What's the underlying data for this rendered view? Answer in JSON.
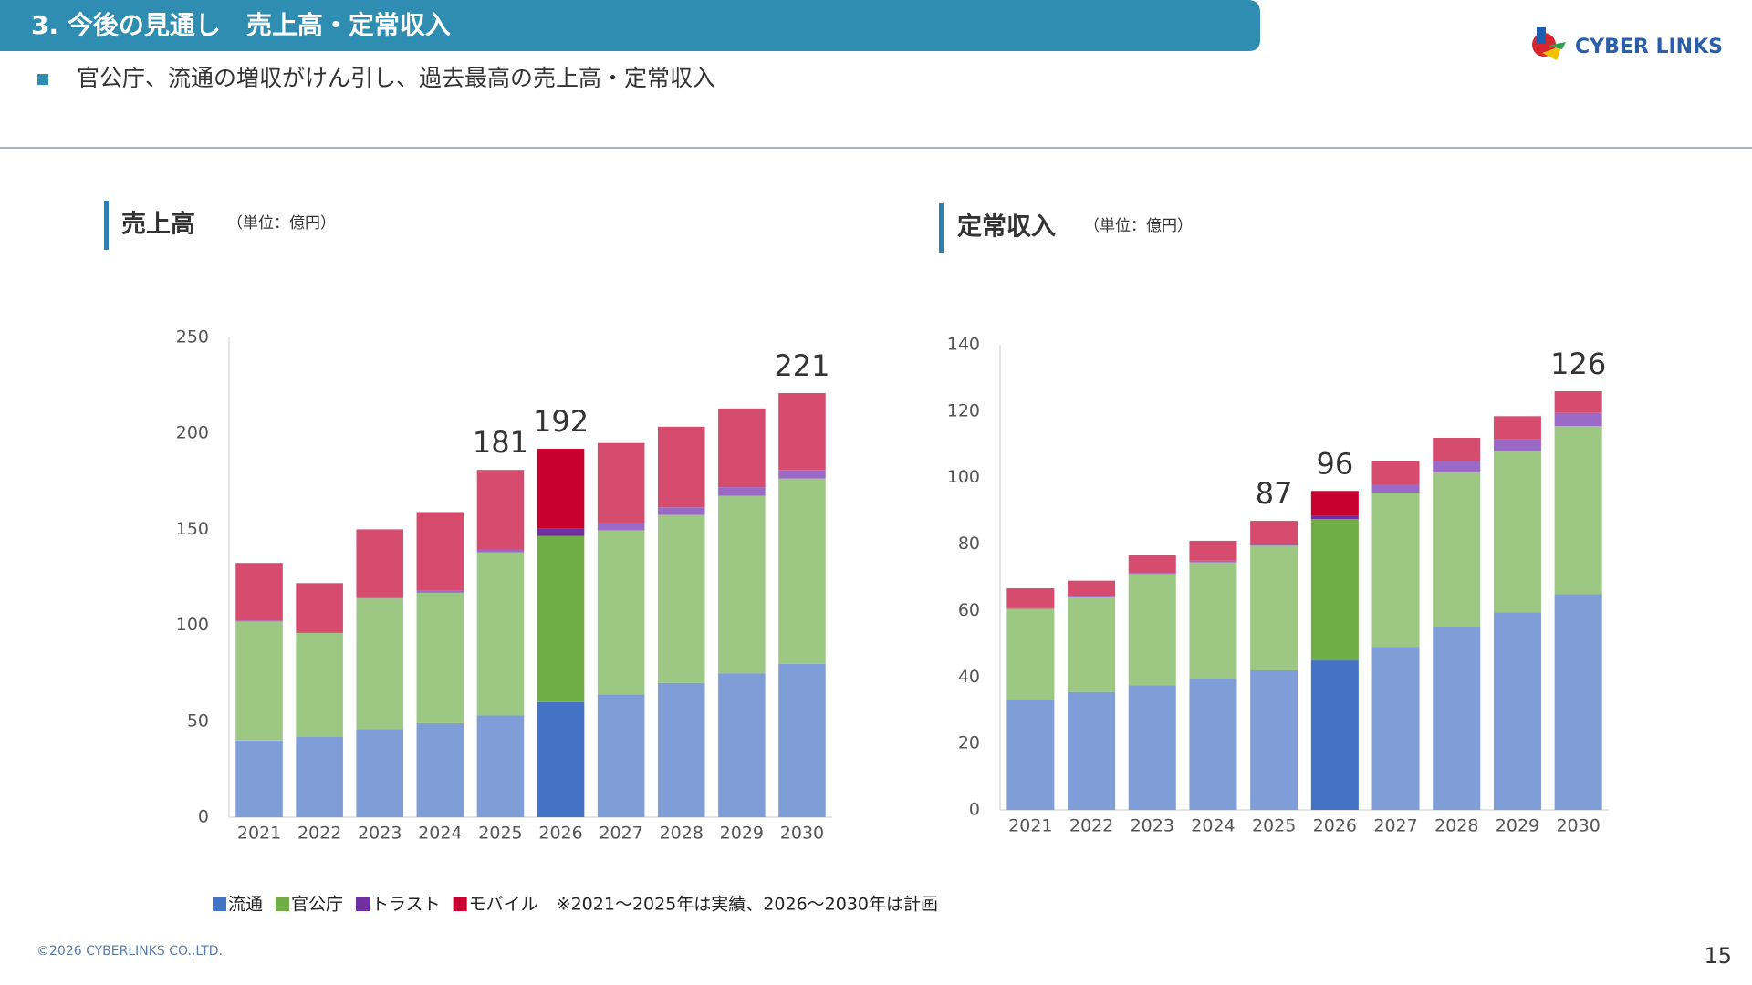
{
  "header": {
    "title": "3. 今後の見通し　売上高・定常収入",
    "logo": "CYBER LINKS"
  },
  "bullet": "官公庁、流通の増収がけん引し、過去最高の売上高・定常収入",
  "chart_data": [
    {
      "type": "bar",
      "stacked": true,
      "title": "売上高",
      "subtitle": "（単位：億円）",
      "categories": [
        "2021",
        "2022",
        "2023",
        "2024",
        "2025",
        "2026",
        "2027",
        "2028",
        "2029",
        "2030"
      ],
      "series": [
        {
          "name": "流通",
          "color": "#7f9dd6",
          "highlight_color": "#4472c4",
          "values": [
            40,
            42,
            46,
            49,
            53,
            60,
            64,
            70,
            75,
            80
          ]
        },
        {
          "name": "官公庁",
          "color": "#9dc883",
          "highlight_color": "#70ad47",
          "values": [
            62,
            54,
            68,
            68,
            85,
            86.5,
            85.5,
            87.5,
            92.5,
            96.5
          ]
        },
        {
          "name": "トラスト",
          "color": "#9b6ac7",
          "highlight_color": "#7030a0",
          "values": [
            0.5,
            0.5,
            0.5,
            1,
            1.5,
            4,
            4,
            4,
            4.5,
            4.5
          ]
        },
        {
          "name": "モバイル",
          "color": "#d64c6e",
          "highlight_color": "#c8002f",
          "values": [
            30,
            25.5,
            35.5,
            41,
            41.5,
            41.5,
            41.5,
            42,
            41,
            40
          ]
        }
      ],
      "totals": [
        null,
        null,
        null,
        null,
        181,
        192,
        null,
        null,
        null,
        221
      ],
      "highlight_category": "2026",
      "ylim": [
        0,
        250
      ],
      "yticks": [
        0,
        50,
        100,
        150,
        200,
        250
      ],
      "grid": false
    },
    {
      "type": "bar",
      "stacked": true,
      "title": "定常収入",
      "subtitle": "（単位：億円）",
      "categories": [
        "2021",
        "2022",
        "2023",
        "2024",
        "2025",
        "2026",
        "2027",
        "2028",
        "2029",
        "2030"
      ],
      "series": [
        {
          "color": "#7f9dd6",
          "highlight_color": "#4472c4",
          "values": [
            33,
            35.5,
            37.5,
            39.5,
            42,
            45,
            49,
            55,
            59.5,
            65
          ]
        },
        {
          "color": "#9dc883",
          "highlight_color": "#70ad47",
          "values": [
            27.5,
            28.5,
            33.5,
            35,
            37.5,
            42.5,
            46.5,
            46.5,
            48.5,
            50.5
          ]
        },
        {
          "color": "#9b6ac7",
          "highlight_color": "#7030a0",
          "values": [
            0.2,
            0.3,
            0.3,
            0.5,
            0.5,
            1,
            2.5,
            3.5,
            3.5,
            4
          ]
        },
        {
          "color": "#d64c6e",
          "highlight_color": "#c8002f",
          "values": [
            6,
            4.7,
            5.4,
            6,
            7,
            7.5,
            7,
            7,
            7,
            6.5
          ]
        }
      ],
      "totals": [
        null,
        null,
        null,
        null,
        87,
        96,
        null,
        null,
        null,
        126
      ],
      "highlight_category": "2026",
      "ylim": [
        0,
        140
      ],
      "yticks": [
        0,
        20,
        40,
        60,
        80,
        100,
        120,
        140
      ],
      "grid": false
    }
  ],
  "note": "※2021～2025年は実績、2026～2030年は計画",
  "footer": {
    "copyright": "©2026 CYBERLINKS CO.,LTD.",
    "page": "15"
  }
}
